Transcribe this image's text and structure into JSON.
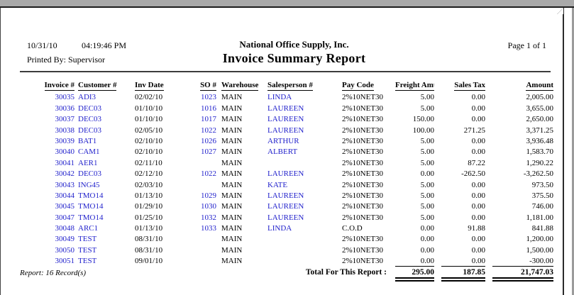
{
  "window": {
    "top_bar_color": "#a9a9a9"
  },
  "colors": {
    "link_blue": "#2222cc",
    "text": "#000000"
  },
  "report_header": {
    "print_date": "10/31/10",
    "print_time": "04:19:46 PM",
    "printed_by": "Printed By: Supervisor",
    "company_name": "National Office Supply, Inc.",
    "title": "Invoice Summary Report",
    "page_indicator": "Page 1 of 1"
  },
  "table": {
    "columns": [
      "Invoice #",
      "Customer #",
      "Inv Date",
      "SO #",
      "Warehouse",
      "Salesperson #",
      "Pay Code",
      "Freight Amt",
      "Sales Tax",
      "Amount"
    ],
    "rows": [
      {
        "invoice": "30035",
        "customer": "ADI3",
        "inv_date": "02/02/10",
        "so": "1023",
        "warehouse": "MAIN",
        "salesperson": "LINDA",
        "pay_code": "2%10NET30",
        "freight": "5.00",
        "sales_tax": "0.00",
        "amount": "2,005.00"
      },
      {
        "invoice": "30036",
        "customer": "DEC03",
        "inv_date": "01/10/10",
        "so": "1016",
        "warehouse": "MAIN",
        "salesperson": "LAUREEN",
        "pay_code": "2%10NET30",
        "freight": "5.00",
        "sales_tax": "0.00",
        "amount": "3,655.00"
      },
      {
        "invoice": "30037",
        "customer": "DEC03",
        "inv_date": "01/10/10",
        "so": "1017",
        "warehouse": "MAIN",
        "salesperson": "LAUREEN",
        "pay_code": "2%10NET30",
        "freight": "150.00",
        "sales_tax": "0.00",
        "amount": "2,650.00"
      },
      {
        "invoice": "30038",
        "customer": "DEC03",
        "inv_date": "02/05/10",
        "so": "1022",
        "warehouse": "MAIN",
        "salesperson": "LAUREEN",
        "pay_code": "2%10NET30",
        "freight": "100.00",
        "sales_tax": "271.25",
        "amount": "3,371.25"
      },
      {
        "invoice": "30039",
        "customer": "BAT1",
        "inv_date": "02/10/10",
        "so": "1026",
        "warehouse": "MAIN",
        "salesperson": "ARTHUR",
        "pay_code": "2%10NET30",
        "freight": "5.00",
        "sales_tax": "0.00",
        "amount": "3,936.48"
      },
      {
        "invoice": "30040",
        "customer": "CAM1",
        "inv_date": "02/10/10",
        "so": "1027",
        "warehouse": "MAIN",
        "salesperson": "ALBERT",
        "pay_code": "2%10NET30",
        "freight": "5.00",
        "sales_tax": "0.00",
        "amount": "1,583.70"
      },
      {
        "invoice": "30041",
        "customer": "AER1",
        "inv_date": "02/11/10",
        "so": "",
        "warehouse": "MAIN",
        "salesperson": "",
        "pay_code": "2%10NET30",
        "freight": "5.00",
        "sales_tax": "87.22",
        "amount": "1,290.22"
      },
      {
        "invoice": "30042",
        "customer": "DEC03",
        "inv_date": "02/12/10",
        "so": "1022",
        "warehouse": "MAIN",
        "salesperson": "LAUREEN",
        "pay_code": "2%10NET30",
        "freight": "0.00",
        "sales_tax": "-262.50",
        "amount": "-3,262.50"
      },
      {
        "invoice": "30043",
        "customer": "ING45",
        "inv_date": "02/03/10",
        "so": "",
        "warehouse": "MAIN",
        "salesperson": "KATE",
        "pay_code": "2%10NET30",
        "freight": "5.00",
        "sales_tax": "0.00",
        "amount": "973.50"
      },
      {
        "invoice": "30044",
        "customer": "TMO14",
        "inv_date": "01/13/10",
        "so": "1029",
        "warehouse": "MAIN",
        "salesperson": "LAUREEN",
        "pay_code": "2%10NET30",
        "freight": "5.00",
        "sales_tax": "0.00",
        "amount": "375.50"
      },
      {
        "invoice": "30045",
        "customer": "TMO14",
        "inv_date": "01/29/10",
        "so": "1030",
        "warehouse": "MAIN",
        "salesperson": "LAUREEN",
        "pay_code": "2%10NET30",
        "freight": "5.00",
        "sales_tax": "0.00",
        "amount": "746.00"
      },
      {
        "invoice": "30047",
        "customer": "TMO14",
        "inv_date": "01/25/10",
        "so": "1032",
        "warehouse": "MAIN",
        "salesperson": "LAUREEN",
        "pay_code": "2%10NET30",
        "freight": "5.00",
        "sales_tax": "0.00",
        "amount": "1,181.00"
      },
      {
        "invoice": "30048",
        "customer": "ARC1",
        "inv_date": "01/13/10",
        "so": "1033",
        "warehouse": "MAIN",
        "salesperson": "LINDA",
        "pay_code": "C.O.D",
        "freight": "0.00",
        "sales_tax": "91.88",
        "amount": "841.88"
      },
      {
        "invoice": "30049",
        "customer": "TEST",
        "inv_date": "08/31/10",
        "so": "",
        "warehouse": "MAIN",
        "salesperson": "",
        "pay_code": "2%10NET30",
        "freight": "0.00",
        "sales_tax": "0.00",
        "amount": "1,200.00"
      },
      {
        "invoice": "30050",
        "customer": "TEST",
        "inv_date": "08/31/10",
        "so": "",
        "warehouse": "MAIN",
        "salesperson": "",
        "pay_code": "2%10NET30",
        "freight": "0.00",
        "sales_tax": "0.00",
        "amount": "1,500.00"
      },
      {
        "invoice": "30051",
        "customer": "TEST",
        "inv_date": "09/01/10",
        "so": "",
        "warehouse": "MAIN",
        "salesperson": "",
        "pay_code": "2%10NET30",
        "freight": "0.00",
        "sales_tax": "0.00",
        "amount": "-300.00"
      }
    ]
  },
  "summary": {
    "record_count": "Report: 16 Record(s)",
    "total_label": "Total For This Report :",
    "totals": {
      "freight": "295.00",
      "sales_tax": "187.85",
      "amount": "21,747.03"
    }
  }
}
